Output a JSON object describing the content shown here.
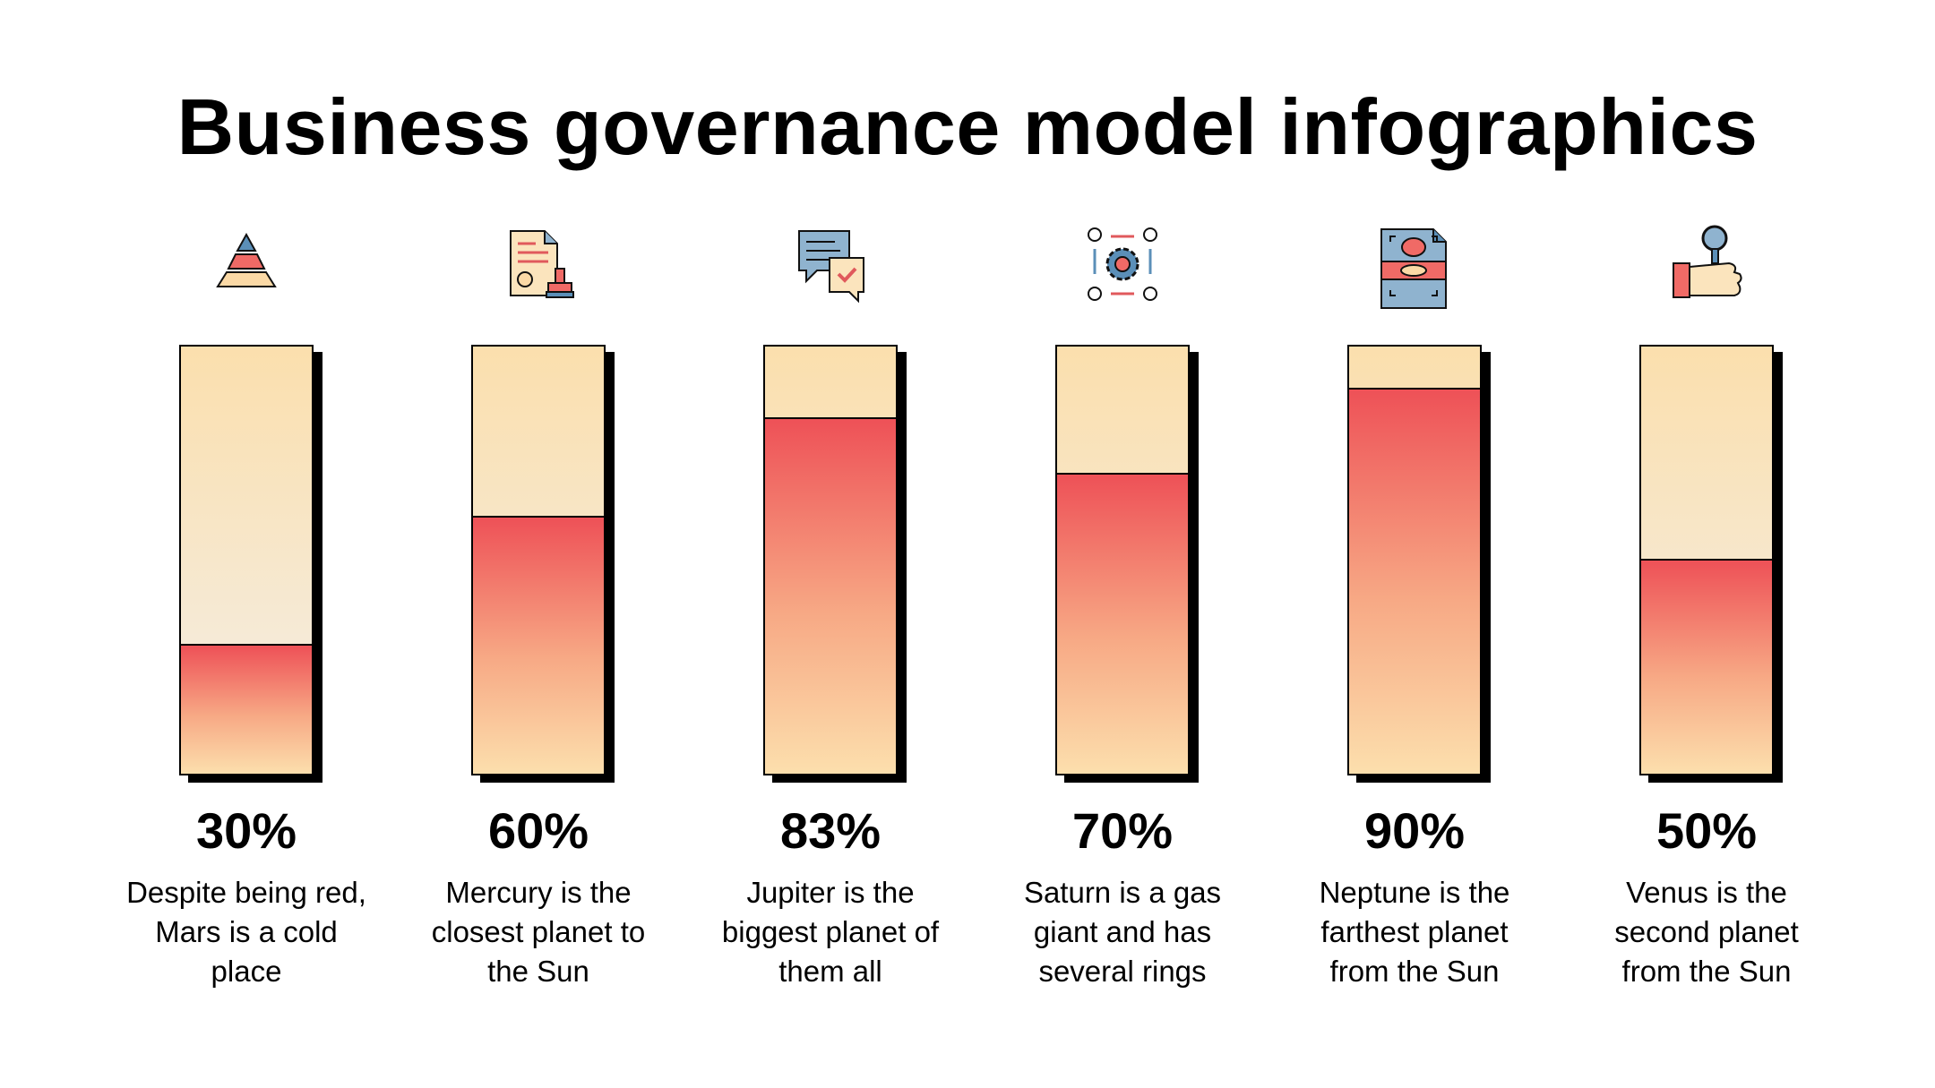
{
  "title": "Business governance model infographics",
  "colors": {
    "fill_top": "#ee5157",
    "fill_bottom": "#fcdfad",
    "bar_background": "#fbdfad",
    "outline": "#000000"
  },
  "chart_data": {
    "type": "bar",
    "title": "Business governance model infographics",
    "ylim": [
      0,
      100
    ],
    "unit": "%",
    "grid": false,
    "items": [
      {
        "value": 30,
        "label": "30%",
        "description": "Despite being red, Mars is a cold place",
        "icon": "pyramid-icon"
      },
      {
        "value": 60,
        "label": "60%",
        "description": "Mercury is the closest planet to the Sun",
        "icon": "document-stamp-icon"
      },
      {
        "value": 83,
        "label": "83%",
        "description": "Jupiter is the biggest planet of them all",
        "icon": "chat-approval-icon"
      },
      {
        "value": 70,
        "label": "70%",
        "description": "Saturn is a gas giant and has several rings",
        "icon": "gear-workflow-icon"
      },
      {
        "value": 90,
        "label": "90%",
        "description": "Neptune is the farthest planet from the Sun",
        "icon": "scan-document-icon"
      },
      {
        "value": 50,
        "label": "50%",
        "description": "Venus is the second planet from the Sun",
        "icon": "hand-magnifier-icon"
      }
    ]
  }
}
